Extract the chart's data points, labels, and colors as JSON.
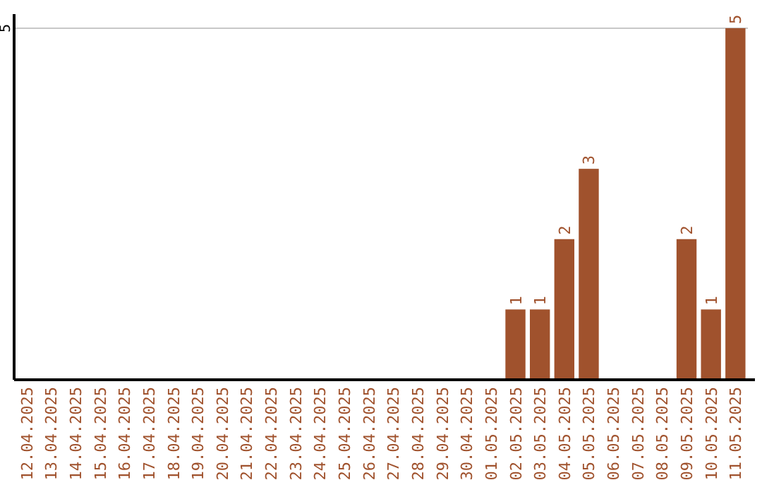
{
  "chart_data": {
    "type": "bar",
    "categories": [
      "12.04.2025",
      "13.04.2025",
      "14.04.2025",
      "15.04.2025",
      "16.04.2025",
      "17.04.2025",
      "18.04.2025",
      "19.04.2025",
      "20.04.2025",
      "21.04.2025",
      "22.04.2025",
      "23.04.2025",
      "24.04.2025",
      "25.04.2025",
      "26.04.2025",
      "27.04.2025",
      "28.04.2025",
      "29.04.2025",
      "30.04.2025",
      "01.05.2025",
      "02.05.2025",
      "03.05.2025",
      "04.05.2025",
      "05.05.2025",
      "06.05.2025",
      "07.05.2025",
      "08.05.2025",
      "09.05.2025",
      "10.05.2025",
      "11.05.2025"
    ],
    "values": [
      null,
      null,
      null,
      null,
      null,
      null,
      null,
      null,
      null,
      null,
      null,
      null,
      null,
      null,
      null,
      null,
      null,
      null,
      null,
      null,
      1,
      1,
      2,
      3,
      null,
      null,
      null,
      2,
      1,
      5
    ],
    "color": "#a0522d",
    "ylim": [
      0,
      5.2
    ],
    "yticks": [
      5
    ],
    "grid": "y",
    "data_labels": true
  }
}
